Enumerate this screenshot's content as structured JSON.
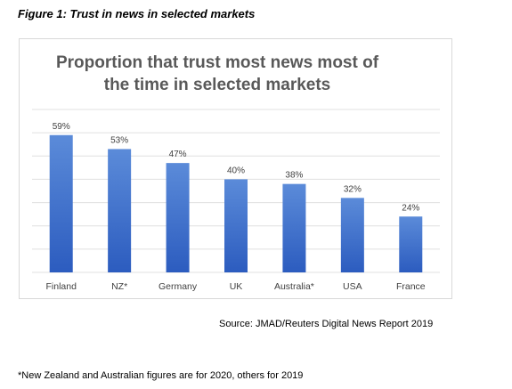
{
  "figure_caption": "Figure 1: Trust in news in selected markets",
  "source": "Source: JMAD/Reuters Digital News Report 2019",
  "footnote": "*New Zealand and Australian figures are for 2020, others for 2019",
  "colors": {
    "bar_top": "#5b8bd9",
    "bar_bottom": "#2c5cbf",
    "gridline": "#e0e0e0",
    "frame": "#d9d9d9",
    "title": "#595959"
  },
  "chart_data": {
    "type": "bar",
    "title_lines": [
      "Proportion that trust most news most of",
      "the time in selected markets"
    ],
    "categories": [
      "Finland",
      "NZ*",
      "Germany",
      "UK",
      "Australia*",
      "USA",
      "France"
    ],
    "values": [
      59,
      53,
      47,
      40,
      38,
      32,
      24
    ],
    "data_labels": [
      "59%",
      "53%",
      "47%",
      "40%",
      "38%",
      "32%",
      "24%"
    ],
    "ylim": [
      0,
      70
    ],
    "gridlines": [
      0,
      10,
      20,
      30,
      40,
      50,
      60,
      70
    ],
    "grid": true,
    "legend": "none"
  }
}
